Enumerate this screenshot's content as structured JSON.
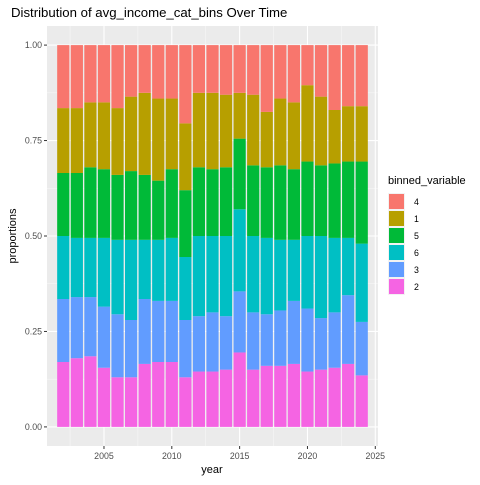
{
  "chart_data": {
    "type": "bar",
    "stacked": true,
    "title": "Distribution of avg_income_cat_bins Over Time",
    "xlabel": "year",
    "ylabel": "proportions",
    "xlim": [
      2000.8,
      2025.2
    ],
    "ylim": [
      -0.05,
      1.05
    ],
    "x_ticks": [
      2005,
      2010,
      2015,
      2020,
      2025
    ],
    "y_ticks": [
      0,
      0.25,
      0.5,
      0.75,
      1.0
    ],
    "y_tick_labels": [
      "0.00",
      "0.25",
      "0.50",
      "0.75",
      "1.00"
    ],
    "grid": true,
    "legend": {
      "title": "binned_variable",
      "position": "right"
    },
    "categories": [
      2002,
      2003,
      2004,
      2005,
      2006,
      2007,
      2008,
      2009,
      2010,
      2011,
      2012,
      2013,
      2014,
      2015,
      2016,
      2017,
      2018,
      2019,
      2020,
      2021,
      2022,
      2023,
      2024
    ],
    "series": [
      {
        "name": "2",
        "color": "#F564E3",
        "values": [
          0.17,
          0.18,
          0.185,
          0.155,
          0.13,
          0.13,
          0.165,
          0.17,
          0.17,
          0.13,
          0.145,
          0.145,
          0.15,
          0.195,
          0.15,
          0.16,
          0.16,
          0.165,
          0.145,
          0.15,
          0.155,
          0.165,
          0.135
        ]
      },
      {
        "name": "3",
        "color": "#619CFF",
        "values": [
          0.165,
          0.16,
          0.155,
          0.16,
          0.165,
          0.15,
          0.17,
          0.16,
          0.16,
          0.15,
          0.145,
          0.155,
          0.14,
          0.16,
          0.15,
          0.135,
          0.145,
          0.165,
          0.165,
          0.135,
          0.145,
          0.18,
          0.14
        ]
      },
      {
        "name": "6",
        "color": "#00BFC4",
        "values": [
          0.165,
          0.155,
          0.155,
          0.18,
          0.195,
          0.21,
          0.155,
          0.16,
          0.165,
          0.165,
          0.21,
          0.2,
          0.21,
          0.215,
          0.2,
          0.2,
          0.185,
          0.16,
          0.19,
          0.215,
          0.195,
          0.15,
          0.205
        ]
      },
      {
        "name": "5",
        "color": "#00BA38",
        "values": [
          0.165,
          0.17,
          0.185,
          0.18,
          0.17,
          0.18,
          0.17,
          0.155,
          0.18,
          0.175,
          0.18,
          0.175,
          0.18,
          0.185,
          0.185,
          0.185,
          0.195,
          0.185,
          0.195,
          0.185,
          0.195,
          0.2,
          0.215
        ]
      },
      {
        "name": "1",
        "color": "#B79F00",
        "values": [
          0.17,
          0.17,
          0.17,
          0.175,
          0.175,
          0.195,
          0.215,
          0.215,
          0.185,
          0.175,
          0.195,
          0.2,
          0.19,
          0.12,
          0.185,
          0.145,
          0.175,
          0.175,
          0.2,
          0.18,
          0.14,
          0.145,
          0.145
        ]
      },
      {
        "name": "4",
        "color": "#F8766D",
        "values": [
          0.165,
          0.165,
          0.15,
          0.15,
          0.165,
          0.135,
          0.125,
          0.14,
          0.14,
          0.205,
          0.125,
          0.125,
          0.13,
          0.125,
          0.13,
          0.175,
          0.14,
          0.15,
          0.105,
          0.135,
          0.17,
          0.16,
          0.16
        ]
      }
    ],
    "legend_order": [
      "4",
      "1",
      "5",
      "6",
      "3",
      "2"
    ]
  }
}
